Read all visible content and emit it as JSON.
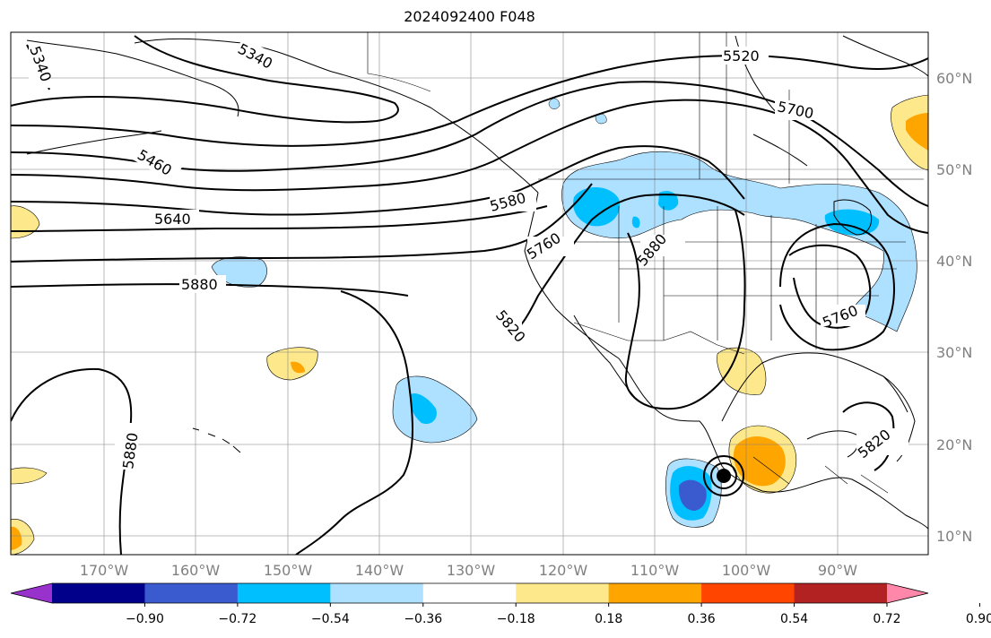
{
  "title": "2024092400 F048",
  "lat_labels": [
    "60°N",
    "50°N",
    "40°N",
    "30°N",
    "20°N",
    "10°N"
  ],
  "lon_labels": [
    "170°W",
    "160°W",
    "150°W",
    "140°W",
    "130°W",
    "120°W",
    "110°W",
    "100°W",
    "90°W"
  ],
  "contour_labels": [
    "5340",
    "5340",
    "5520",
    "5700",
    "5460",
    "5580",
    "5640",
    "5760",
    "5880",
    "5880",
    "5820",
    "5760",
    "5880",
    "5820"
  ],
  "colorbar": {
    "ticks": [
      "−0.90",
      "−0.72",
      "−0.54",
      "−0.36",
      "−0.18",
      "0.18",
      "0.36",
      "0.54",
      "0.72",
      "0.90"
    ],
    "colors": [
      "#9932cc",
      "#00008b",
      "#3a5bd0",
      "#00bfff",
      "#aee0ff",
      "#ffffff",
      "#fde98c",
      "#ffa500",
      "#ff4500",
      "#b22222",
      "#ff88aa"
    ]
  },
  "marker": "storm-center-dot"
}
